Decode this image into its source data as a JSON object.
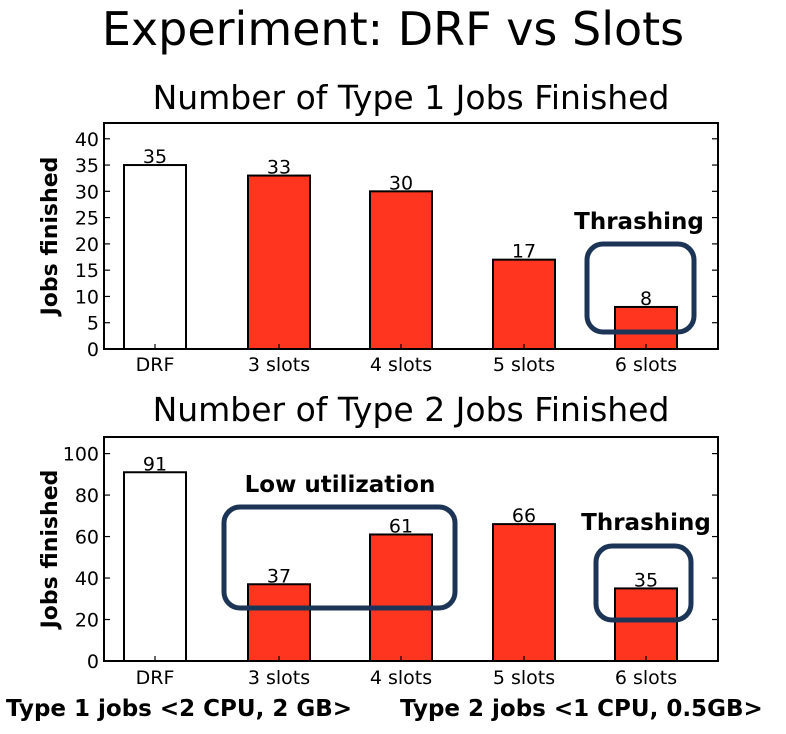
{
  "page_title": "Experiment: DRF vs Slots",
  "colors": {
    "drf_bar": "#ffffff",
    "slot_bar": "#ff3520",
    "highlight_box": "#1c3557",
    "axis": "#000000"
  },
  "chart_data": [
    {
      "type": "bar",
      "title": "Number of Type 1 Jobs Finished",
      "xlabel": "",
      "ylabel": "Jobs finished",
      "categories": [
        "DRF",
        "3 slots",
        "4 slots",
        "5 slots",
        "6 slots"
      ],
      "values": [
        35,
        33,
        30,
        17,
        8
      ],
      "data_labels": [
        "35",
        "33",
        "30",
        "17",
        "8"
      ],
      "bar_colors": [
        "#ffffff",
        "#ff3520",
        "#ff3520",
        "#ff3520",
        "#ff3520"
      ],
      "ylim": [
        0,
        43
      ],
      "yticks": [
        0,
        5,
        10,
        15,
        20,
        25,
        30,
        35,
        40
      ],
      "grid": false,
      "annotations": [
        {
          "text": "Thrashing",
          "highlights": [
            "6 slots"
          ]
        }
      ]
    },
    {
      "type": "bar",
      "title": "Number of Type 2 Jobs Finished",
      "xlabel": "",
      "ylabel": "Jobs finished",
      "categories": [
        "DRF",
        "3 slots",
        "4 slots",
        "5 slots",
        "6 slots"
      ],
      "values": [
        91,
        37,
        61,
        66,
        35
      ],
      "data_labels": [
        "91",
        "37",
        "61",
        "66",
        "35"
      ],
      "bar_colors": [
        "#ffffff",
        "#ff3520",
        "#ff3520",
        "#ff3520",
        "#ff3520"
      ],
      "ylim": [
        0,
        108
      ],
      "yticks": [
        0,
        20,
        40,
        60,
        80,
        100
      ],
      "grid": false,
      "annotations": [
        {
          "text": "Low utilization",
          "highlights": [
            "3 slots",
            "4 slots"
          ]
        },
        {
          "text": "Thrashing",
          "highlights": [
            "6 slots"
          ]
        }
      ]
    }
  ],
  "footer": {
    "type1": "Type 1 jobs <2 CPU, 2 GB>",
    "type2": "Type 2 jobs <1 CPU, 0.5GB>"
  }
}
